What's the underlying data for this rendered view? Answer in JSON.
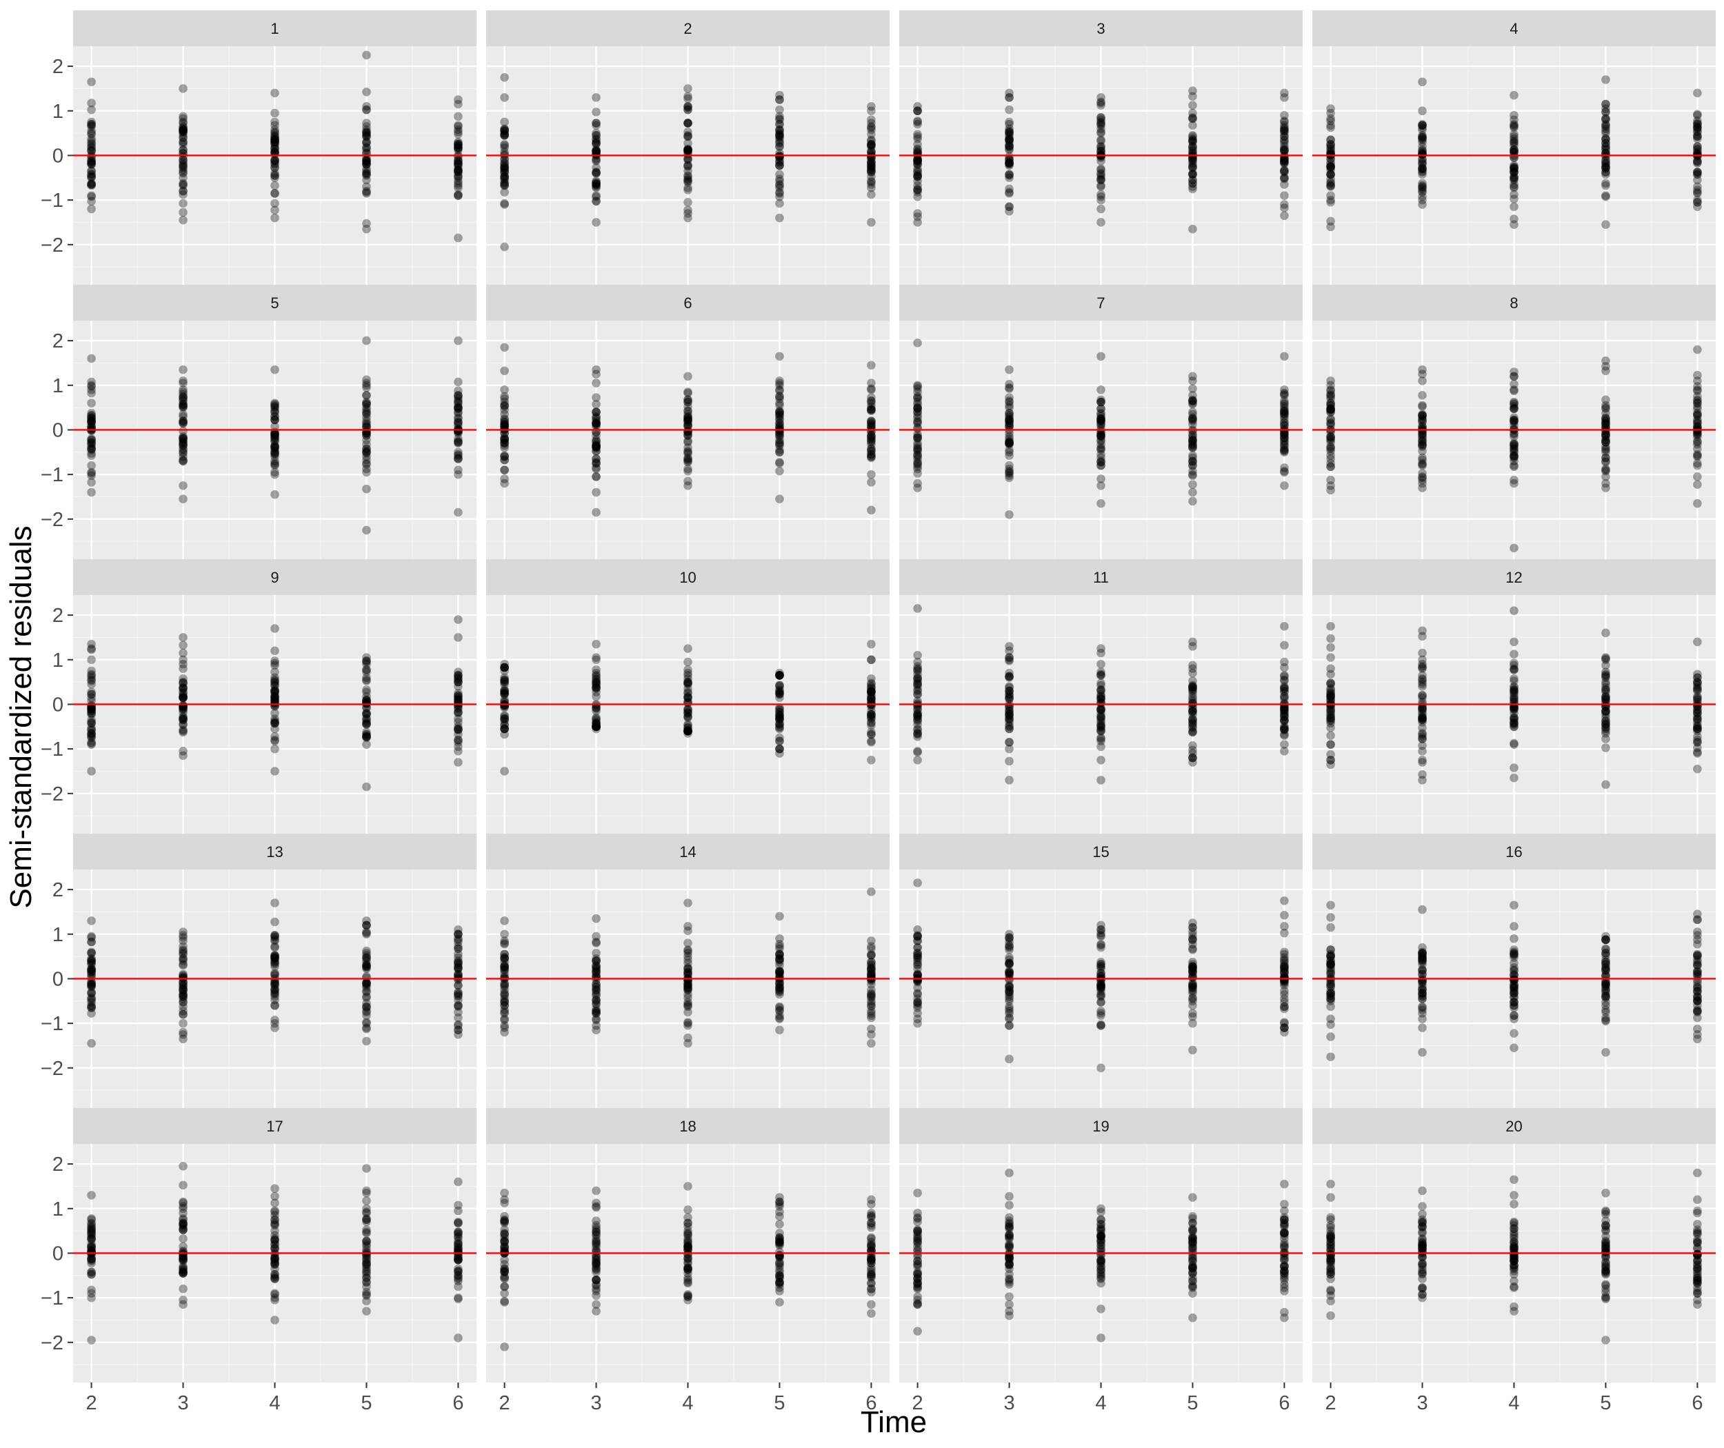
{
  "chart_data": {
    "type": "scatter",
    "xlabel": "Time",
    "ylabel": "Semi-standardized residuals",
    "xlim": [
      1.8,
      6.2
    ],
    "ylim": [
      -2.9,
      2.45
    ],
    "x_ticks": [
      2,
      3,
      4,
      5,
      6
    ],
    "y_ticks": [
      -2,
      -1,
      0,
      1,
      2
    ],
    "y_tick_labels": [
      "−2",
      "−1",
      "0",
      "1",
      "2"
    ],
    "grid": true,
    "reference_line": {
      "y": 0,
      "color": "#ff0000"
    },
    "point_color": "rgba(0,0,0,0.35)",
    "panel_background": "#ebebeb",
    "strip_background": "#d9d9d9",
    "panels": [
      {
        "label": "1",
        "extremes": {
          "2": [
            -1.2,
            1.65
          ],
          "3": [
            -1.45,
            1.5
          ],
          "4": [
            -1.4,
            1.4
          ],
          "5": [
            -1.65,
            2.25
          ],
          "6": [
            -1.85,
            1.25
          ]
        }
      },
      {
        "label": "2",
        "extremes": {
          "2": [
            -2.05,
            1.75
          ],
          "3": [
            -1.5,
            1.3
          ],
          "4": [
            -1.4,
            1.5
          ],
          "5": [
            -1.4,
            1.35
          ],
          "6": [
            -1.5,
            1.1
          ]
        }
      },
      {
        "label": "3",
        "extremes": {
          "2": [
            -1.5,
            1.1
          ],
          "3": [
            -1.25,
            1.4
          ],
          "4": [
            -1.5,
            1.3
          ],
          "5": [
            -1.65,
            1.45
          ],
          "6": [
            -1.35,
            1.4
          ]
        }
      },
      {
        "label": "4",
        "extremes": {
          "2": [
            -1.6,
            1.05
          ],
          "3": [
            -1.1,
            1.65
          ],
          "4": [
            -1.55,
            1.35
          ],
          "5": [
            -1.55,
            1.7
          ],
          "6": [
            -1.15,
            1.4
          ]
        }
      },
      {
        "label": "5",
        "extremes": {
          "2": [
            -1.4,
            1.6
          ],
          "3": [
            -1.55,
            1.35
          ],
          "4": [
            -1.45,
            1.35
          ],
          "5": [
            -2.25,
            2.0
          ],
          "6": [
            -1.85,
            2.0
          ]
        }
      },
      {
        "label": "6",
        "extremes": {
          "2": [
            -1.2,
            1.85
          ],
          "3": [
            -1.85,
            1.35
          ],
          "4": [
            -1.25,
            1.2
          ],
          "5": [
            -1.55,
            1.65
          ],
          "6": [
            -1.8,
            1.45
          ]
        }
      },
      {
        "label": "7",
        "extremes": {
          "2": [
            -1.3,
            1.95
          ],
          "3": [
            -1.9,
            1.35
          ],
          "4": [
            -1.65,
            1.65
          ],
          "5": [
            -1.6,
            1.2
          ],
          "6": [
            -1.25,
            1.65
          ]
        }
      },
      {
        "label": "8",
        "extremes": {
          "2": [
            -1.35,
            1.1
          ],
          "3": [
            -1.3,
            1.35
          ],
          "4": [
            -2.65,
            1.3
          ],
          "5": [
            -1.3,
            1.55
          ],
          "6": [
            -1.65,
            1.8
          ]
        }
      },
      {
        "label": "9",
        "extremes": {
          "2": [
            -1.5,
            1.35
          ],
          "3": [
            -1.15,
            1.5
          ],
          "4": [
            -1.5,
            1.7
          ],
          "5": [
            -1.85,
            1.05
          ],
          "6": [
            -1.3,
            1.9
          ]
        }
      },
      {
        "label": "10",
        "extremes": {
          "2": [
            -1.5,
            0.9
          ],
          "3": [
            -0.55,
            1.35
          ],
          "4": [
            -0.65,
            1.25
          ],
          "5": [
            -1.1,
            0.7
          ],
          "6": [
            -1.25,
            1.35
          ]
        }
      },
      {
        "label": "11",
        "extremes": {
          "2": [
            -1.25,
            2.15
          ],
          "3": [
            -1.7,
            1.3
          ],
          "4": [
            -1.7,
            1.25
          ],
          "5": [
            -1.3,
            1.4
          ],
          "6": [
            -1.05,
            1.75
          ]
        }
      },
      {
        "label": "12",
        "extremes": {
          "2": [
            -1.35,
            1.75
          ],
          "3": [
            -1.7,
            1.65
          ],
          "4": [
            -1.65,
            2.1
          ],
          "5": [
            -1.8,
            1.6
          ],
          "6": [
            -1.45,
            1.4
          ]
        }
      },
      {
        "label": "13",
        "extremes": {
          "2": [
            -1.45,
            1.3
          ],
          "3": [
            -1.35,
            1.05
          ],
          "4": [
            -1.1,
            1.7
          ],
          "5": [
            -1.4,
            1.3
          ],
          "6": [
            -1.25,
            1.1
          ]
        }
      },
      {
        "label": "14",
        "extremes": {
          "2": [
            -1.2,
            1.3
          ],
          "3": [
            -1.15,
            1.35
          ],
          "4": [
            -1.45,
            1.7
          ],
          "5": [
            -1.15,
            1.4
          ],
          "6": [
            -1.45,
            1.95
          ]
        }
      },
      {
        "label": "15",
        "extremes": {
          "2": [
            -1.0,
            2.15
          ],
          "3": [
            -1.8,
            1.0
          ],
          "4": [
            -2.0,
            1.2
          ],
          "5": [
            -1.6,
            1.25
          ],
          "6": [
            -1.2,
            1.75
          ]
        }
      },
      {
        "label": "16",
        "extremes": {
          "2": [
            -1.75,
            1.65
          ],
          "3": [
            -1.65,
            1.55
          ],
          "4": [
            -1.55,
            1.65
          ],
          "5": [
            -1.65,
            0.95
          ],
          "6": [
            -1.35,
            1.45
          ]
        }
      },
      {
        "label": "17",
        "extremes": {
          "2": [
            -1.95,
            1.3
          ],
          "3": [
            -1.15,
            1.95
          ],
          "4": [
            -1.5,
            1.45
          ],
          "5": [
            -1.3,
            1.9
          ],
          "6": [
            -1.9,
            1.6
          ]
        }
      },
      {
        "label": "18",
        "extremes": {
          "2": [
            -2.1,
            1.35
          ],
          "3": [
            -1.3,
            1.4
          ],
          "4": [
            -1.05,
            1.5
          ],
          "5": [
            -1.1,
            1.25
          ],
          "6": [
            -1.35,
            1.2
          ]
        }
      },
      {
        "label": "19",
        "extremes": {
          "2": [
            -1.75,
            1.35
          ],
          "3": [
            -1.4,
            1.8
          ],
          "4": [
            -1.9,
            1.0
          ],
          "5": [
            -1.45,
            1.25
          ],
          "6": [
            -1.45,
            1.55
          ]
        }
      },
      {
        "label": "20",
        "extremes": {
          "2": [
            -1.4,
            1.55
          ],
          "3": [
            -1.0,
            1.4
          ],
          "4": [
            -1.3,
            1.65
          ],
          "5": [
            -1.95,
            1.35
          ],
          "6": [
            -1.15,
            1.8
          ]
        }
      }
    ]
  }
}
